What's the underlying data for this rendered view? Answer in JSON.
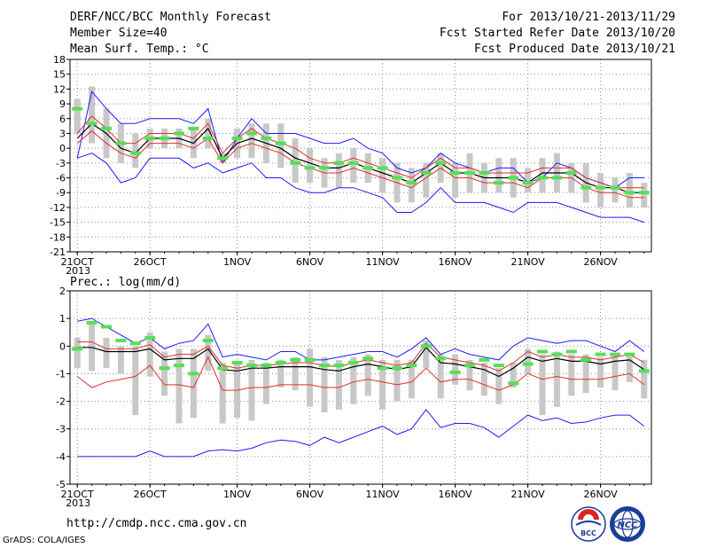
{
  "header": {
    "title": "DERF/NCC/BCC Monthly Forecast",
    "member_size": "Member Size=40",
    "variable": "Mean Surf. Temp.: °C",
    "period": "For 2013/10/21-2013/11/29",
    "started": "Fcst Started Refer Date 2013/10/20",
    "produced": "Fcst Produced Date 2013/10/21"
  },
  "footer": {
    "url": "http://cmdp.ncc.cma.gov.cn",
    "grads": "GrADS: COLA/IGES",
    "bcc_logo": "BCC",
    "ncc_logo": "NCC"
  },
  "colors": {
    "ensemble_mean": "#000000",
    "spread": "#e0302a",
    "extremes": "#1a1aff",
    "observed": "#55e055",
    "box": "#c8c8c8",
    "grid": "#888888"
  },
  "chart_data": [
    {
      "type": "line",
      "title": "Mean Surf. Temp.: °C",
      "ylim": [
        -21,
        18
      ],
      "yticks": [
        18,
        15,
        12,
        9,
        6,
        3,
        0,
        -3,
        -6,
        -9,
        -12,
        -15,
        -18,
        -21
      ],
      "xlim": [
        0.5,
        40.5
      ],
      "xticks": [
        {
          "day": 1,
          "label": "21OCT",
          "sub": "2013"
        },
        {
          "day": 6,
          "label": "26OCT"
        },
        {
          "day": 12,
          "label": "1NOV"
        },
        {
          "day": 17,
          "label": "6NOV"
        },
        {
          "day": 22,
          "label": "11NOV"
        },
        {
          "day": 27,
          "label": "16NOV"
        },
        {
          "day": 32,
          "label": "21NOV"
        },
        {
          "day": 37,
          "label": "26NOV"
        }
      ],
      "series": [
        {
          "role": "max",
          "values": [
            -2,
            11.5,
            8,
            5,
            5,
            6,
            6,
            6,
            5,
            8,
            -3,
            2,
            6,
            3,
            3,
            3,
            2,
            1,
            1,
            2,
            0,
            -1,
            -4,
            -5,
            -4,
            -1,
            -3,
            -4,
            -5,
            -4,
            -4,
            -7,
            -6,
            -3,
            -4,
            -6,
            -7,
            -8,
            -6,
            -6
          ]
        },
        {
          "role": "upper",
          "values": [
            3,
            6.5,
            4,
            1,
            1,
            3,
            3,
            3,
            2,
            5,
            -1,
            2,
            4,
            2,
            1,
            0,
            -2,
            -3,
            -3,
            -2,
            -3,
            -4,
            -5,
            -6,
            -4,
            -2,
            -4,
            -4,
            -5,
            -5,
            -5,
            -5,
            -4,
            -4,
            -4,
            -6,
            -7,
            -8,
            -8,
            -8
          ]
        },
        {
          "role": "mean",
          "values": [
            2,
            5,
            3,
            0,
            -1,
            2,
            2,
            2,
            1,
            4,
            -2,
            1,
            2,
            1,
            0,
            -2,
            -3,
            -4,
            -4,
            -3,
            -4,
            -5,
            -6,
            -7,
            -5,
            -3,
            -5,
            -5,
            -6,
            -6,
            -6,
            -7,
            -5,
            -5,
            -5,
            -7,
            -8,
            -8,
            -9,
            -9
          ]
        },
        {
          "role": "lower",
          "values": [
            1,
            3.5,
            1,
            -1,
            -2,
            1,
            1,
            1,
            0,
            2,
            -3,
            0,
            1,
            0,
            -1,
            -3,
            -4,
            -5,
            -5,
            -4,
            -5,
            -6,
            -7,
            -8,
            -6,
            -4,
            -6,
            -6,
            -7,
            -7,
            -7,
            -8,
            -6,
            -6,
            -6,
            -8,
            -9,
            -9,
            -10,
            -10
          ]
        },
        {
          "role": "min",
          "values": [
            -2,
            -1,
            -3,
            -7,
            -6,
            -2,
            -2,
            -2,
            -4,
            -3,
            -5,
            -4,
            -3,
            -6,
            -6,
            -8,
            -9,
            -9,
            -8,
            -8,
            -9,
            -10,
            -13,
            -13,
            -11,
            -8,
            -11,
            -11,
            -11,
            -12,
            -13,
            -11,
            -11,
            -11,
            -12,
            -13,
            -14,
            -14,
            -14,
            -15
          ]
        },
        {
          "role": "observed",
          "values": [
            8,
            5,
            4,
            1,
            -1,
            2,
            2,
            3,
            4,
            2,
            -2,
            2,
            3,
            2,
            1,
            -3,
            -4,
            -4,
            -3,
            -3,
            -4,
            -4,
            -6,
            -7,
            -5,
            -3,
            -5,
            -5,
            -5,
            -7,
            -6,
            -7,
            -6,
            -6,
            -5,
            -8,
            -8,
            -8,
            -9,
            -9
          ]
        },
        {
          "role": "box_high",
          "values": [
            10,
            12.5,
            8,
            5,
            3,
            4,
            4,
            4,
            4,
            6,
            -1,
            4,
            5,
            5,
            5,
            2,
            0,
            -2,
            -1,
            0,
            -1,
            -2,
            -3,
            -4,
            -3,
            -1,
            -3,
            -1,
            -3,
            -2,
            -2,
            -4,
            -2,
            -1,
            -3,
            -3,
            -5,
            -6,
            -5,
            -7
          ]
        },
        {
          "role": "box_low",
          "values": [
            3,
            1,
            -2,
            -3,
            -4,
            0,
            0,
            0,
            -2,
            0,
            -3,
            -2,
            -2,
            -3,
            -4,
            -7,
            -7,
            -8,
            -8,
            -7,
            -7,
            -9,
            -11,
            -11,
            -10,
            -7,
            -10,
            -9,
            -9,
            -9,
            -10,
            -9,
            -9,
            -9,
            -9,
            -11,
            -12,
            -11,
            -12,
            -12
          ]
        }
      ]
    },
    {
      "type": "line",
      "title": "Prec.: log(mm/d)",
      "ylim": [
        -5,
        2
      ],
      "yticks": [
        2,
        1,
        0,
        -1,
        -2,
        -3,
        -4,
        -5
      ],
      "xlim": [
        0.5,
        40.5
      ],
      "xticks": [
        {
          "day": 1,
          "label": "21OCT",
          "sub": "2013"
        },
        {
          "day": 6,
          "label": "26OCT"
        },
        {
          "day": 12,
          "label": "1NOV"
        },
        {
          "day": 17,
          "label": "6NOV"
        },
        {
          "day": 22,
          "label": "11NOV"
        },
        {
          "day": 27,
          "label": "16NOV"
        },
        {
          "day": 32,
          "label": "21NOV"
        },
        {
          "day": 37,
          "label": "26NOV"
        }
      ],
      "series": [
        {
          "role": "max",
          "values": [
            0.9,
            1.0,
            0.7,
            0.4,
            0.1,
            0.3,
            -0.1,
            0.1,
            0.2,
            0.8,
            -0.4,
            -0.3,
            -0.4,
            -0.5,
            -0.2,
            -0.2,
            -0.5,
            -0.5,
            -0.4,
            -0.3,
            -0.2,
            -0.2,
            -0.4,
            -0.1,
            0.3,
            -0.3,
            -0.1,
            -0.3,
            -0.4,
            -0.5,
            0.0,
            0.3,
            0.2,
            0.1,
            0.2,
            0.2,
            0.0,
            -0.2,
            0.2,
            -0.2
          ]
        },
        {
          "role": "upper",
          "values": [
            0.15,
            0.15,
            -0.1,
            -0.1,
            -0.1,
            0.05,
            -0.4,
            -0.3,
            -0.3,
            0.0,
            -0.7,
            -0.8,
            -0.7,
            -0.7,
            -0.65,
            -0.6,
            -0.6,
            -0.7,
            -0.75,
            -0.6,
            -0.5,
            -0.6,
            -0.7,
            -0.6,
            0.1,
            -0.4,
            -0.5,
            -0.6,
            -0.7,
            -0.9,
            -0.6,
            -0.2,
            -0.4,
            -0.3,
            -0.4,
            -0.4,
            -0.5,
            -0.4,
            -0.3,
            -0.6
          ]
        },
        {
          "role": "mean",
          "values": [
            -0.05,
            -0.05,
            -0.2,
            -0.2,
            -0.2,
            -0.1,
            -0.5,
            -0.45,
            -0.45,
            -0.1,
            -0.85,
            -0.9,
            -0.8,
            -0.8,
            -0.75,
            -0.75,
            -0.75,
            -0.85,
            -0.9,
            -0.75,
            -0.65,
            -0.75,
            -0.85,
            -0.75,
            -0.05,
            -0.6,
            -0.65,
            -0.75,
            -0.85,
            -1.1,
            -0.8,
            -0.4,
            -0.55,
            -0.45,
            -0.55,
            -0.55,
            -0.65,
            -0.55,
            -0.5,
            -0.85
          ]
        },
        {
          "role": "lower",
          "values": [
            -1.1,
            -1.5,
            -1.3,
            -1.2,
            -1.1,
            -0.7,
            -1.4,
            -1.4,
            -1.5,
            -0.4,
            -1.6,
            -1.6,
            -1.5,
            -1.5,
            -1.4,
            -1.4,
            -1.4,
            -1.5,
            -1.5,
            -1.3,
            -1.2,
            -1.3,
            -1.4,
            -1.3,
            -0.8,
            -1.3,
            -1.2,
            -1.2,
            -1.4,
            -1.6,
            -1.4,
            -1.0,
            -1.2,
            -1.1,
            -1.2,
            -1.2,
            -1.2,
            -1.1,
            -1.0,
            -1.4
          ]
        },
        {
          "role": "min",
          "values": [
            -4.0,
            -4.0,
            -4.0,
            -4.0,
            -4.0,
            -3.8,
            -4.0,
            -4.0,
            -4.0,
            -3.8,
            -3.75,
            -3.8,
            -3.7,
            -3.5,
            -3.4,
            -3.45,
            -3.6,
            -3.3,
            -3.5,
            -3.3,
            -3.1,
            -2.9,
            -3.2,
            -3.0,
            -2.3,
            -2.95,
            -2.8,
            -2.8,
            -2.95,
            -3.3,
            -2.9,
            -2.5,
            -2.7,
            -2.6,
            -2.8,
            -2.75,
            -2.6,
            -2.5,
            -2.5,
            -2.9
          ]
        },
        {
          "role": "observed",
          "values": [
            -0.1,
            0.85,
            0.7,
            0.2,
            0.1,
            0.3,
            -0.8,
            -0.7,
            -1.0,
            0.2,
            -0.8,
            -0.6,
            -0.7,
            -0.7,
            -0.6,
            -0.5,
            -0.5,
            -0.7,
            -0.7,
            -0.6,
            -0.45,
            -0.8,
            -0.8,
            -0.7,
            0.0,
            -0.45,
            -0.95,
            -0.7,
            -0.5,
            -0.7,
            -1.35,
            -0.65,
            -0.2,
            -0.3,
            -0.2,
            -0.5,
            -0.3,
            -0.3,
            -0.3,
            -0.9
          ]
        },
        {
          "role": "box_high",
          "values": [
            0.3,
            0.8,
            0.3,
            0.0,
            0.0,
            0.5,
            -0.2,
            -0.1,
            -0.1,
            0.4,
            -0.6,
            -0.6,
            -0.5,
            -0.6,
            -0.5,
            -0.4,
            -0.1,
            -0.4,
            -0.5,
            -0.4,
            -0.3,
            -0.5,
            -0.5,
            -0.5,
            0.2,
            -0.3,
            -0.3,
            -0.5,
            -0.6,
            -0.8,
            -0.6,
            -0.1,
            -0.3,
            -0.2,
            -0.3,
            -0.3,
            -0.4,
            -0.3,
            -0.3,
            -0.5
          ]
        },
        {
          "role": "box_low",
          "values": [
            -0.8,
            -0.9,
            -0.8,
            -1.0,
            -2.5,
            -1.1,
            -1.8,
            -2.8,
            -2.6,
            -0.9,
            -2.8,
            -2.6,
            -2.7,
            -2.1,
            -1.5,
            -1.6,
            -2.2,
            -2.4,
            -2.3,
            -2.1,
            -1.8,
            -2.3,
            -2.0,
            -1.9,
            -0.8,
            -1.9,
            -1.4,
            -1.6,
            -1.8,
            -2.1,
            -1.5,
            -1.0,
            -2.5,
            -2.2,
            -1.8,
            -1.7,
            -1.5,
            -1.6,
            -1.3,
            -1.9
          ]
        }
      ]
    }
  ]
}
